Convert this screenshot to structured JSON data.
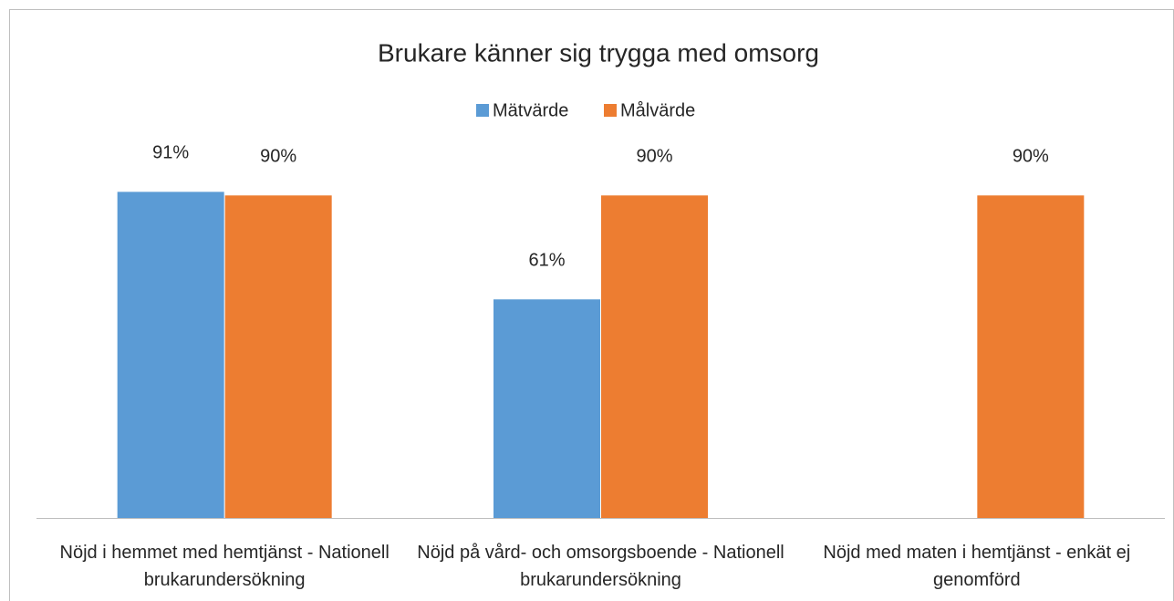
{
  "chart_data": {
    "type": "bar",
    "title": "Brukare känner sig trygga med omsorg",
    "categories": [
      "Nöjd i hemmet med hemtjänst - Nationell brukarundersökning",
      "Nöjd på vård- och omsorgsboende - Nationell brukarundersökning",
      "Nöjd med maten i hemtjänst - enkät ej genomförd"
    ],
    "series": [
      {
        "name": "Mätvärde",
        "color": "#5b9bd5",
        "values": [
          91,
          61,
          null
        ],
        "value_labels": [
          "91%",
          "61%",
          null
        ]
      },
      {
        "name": "Målvärde",
        "color": "#ed7d31",
        "values": [
          90,
          90,
          90
        ],
        "value_labels": [
          "90%",
          "90%",
          "90%"
        ]
      }
    ],
    "ylim": [
      0,
      100
    ],
    "legend": "top"
  }
}
